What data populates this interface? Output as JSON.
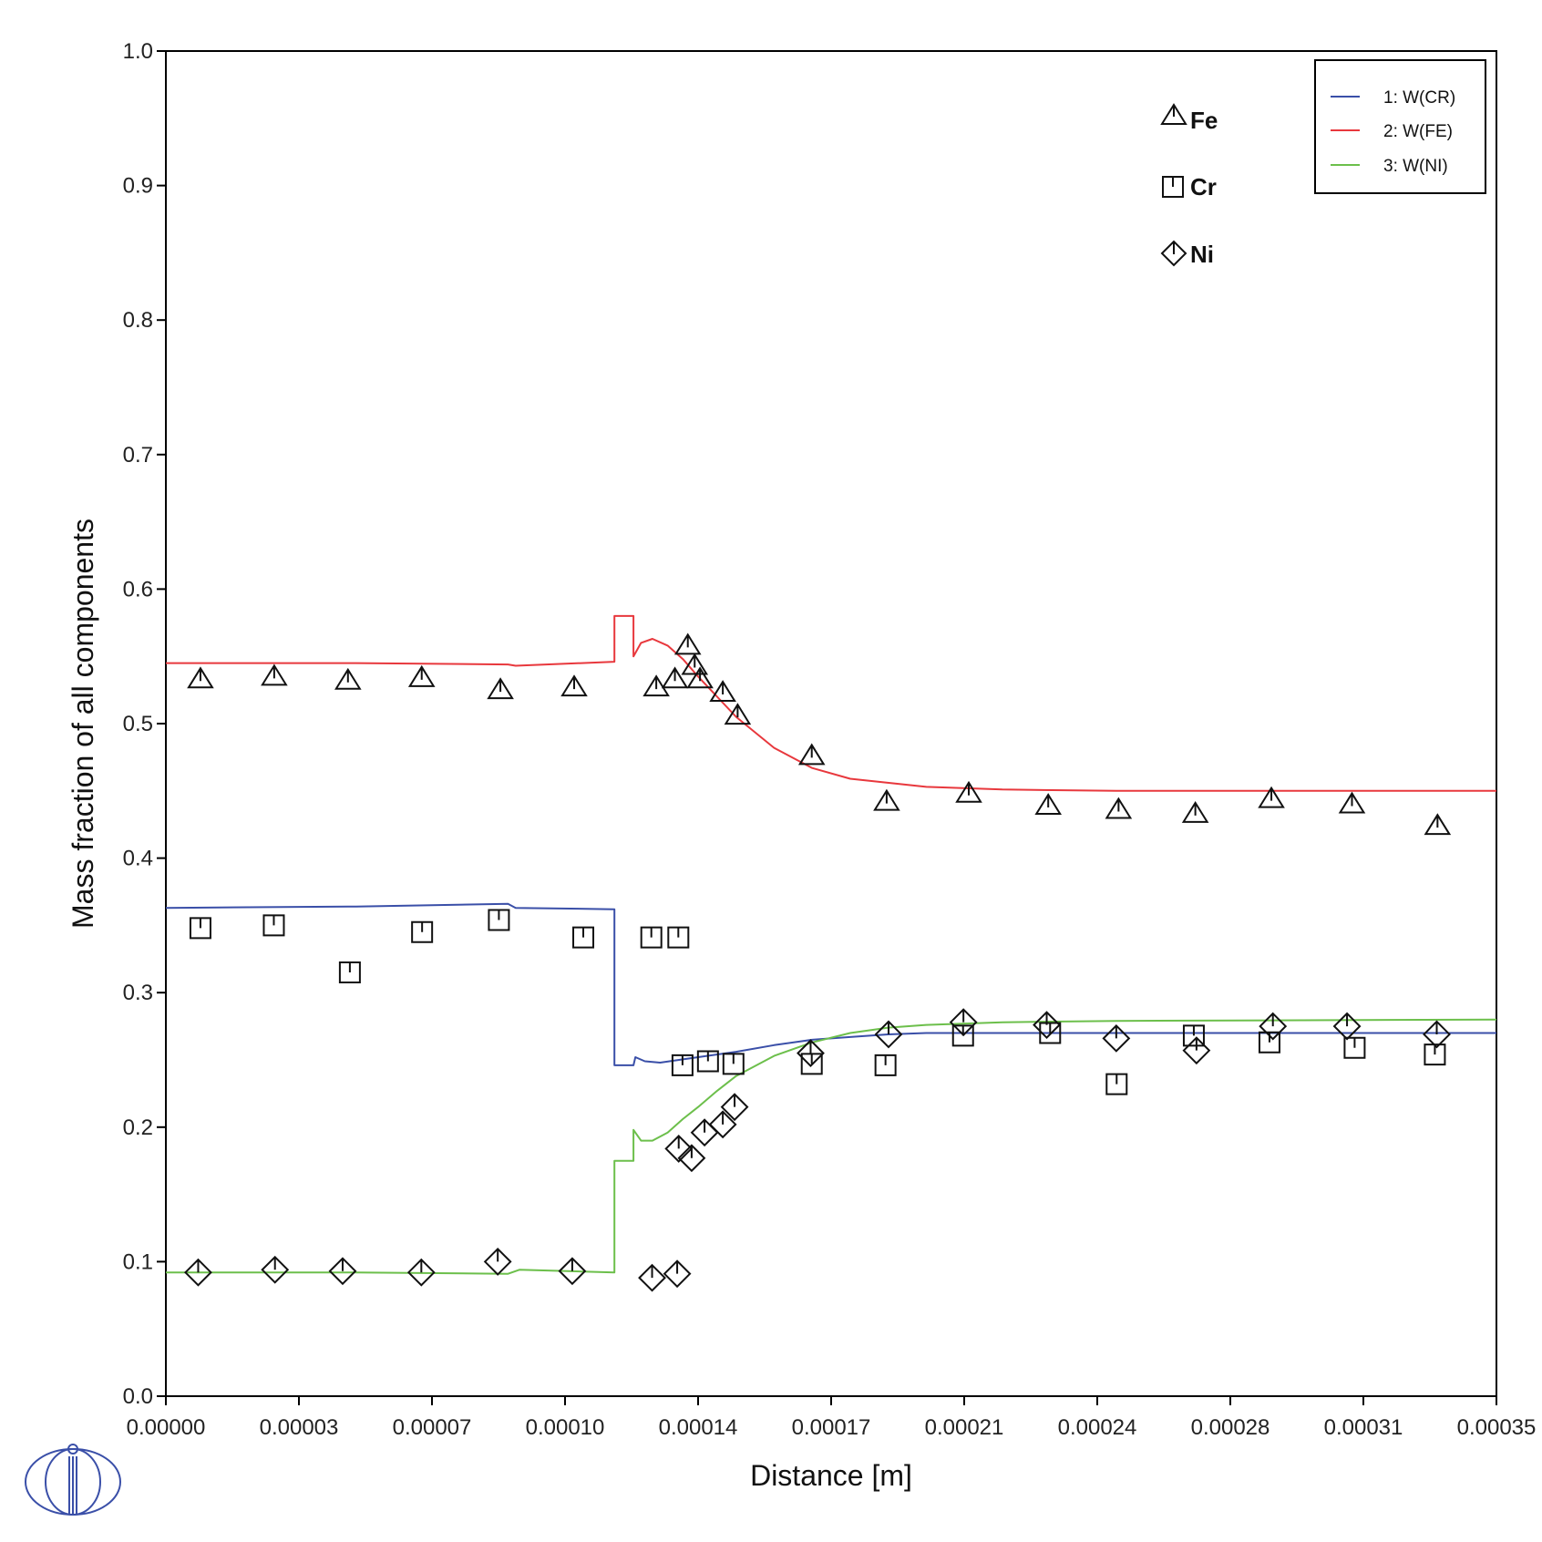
{
  "chart_data": {
    "type": "line",
    "xlabel": "Distance [m]",
    "ylabel": "Mass fraction of all components",
    "xlim": [
      0,
      0.00035
    ],
    "ylim": [
      0,
      1.0
    ],
    "grid": false,
    "x_tick_labels": [
      "0.00000",
      "0.00003",
      "0.00007",
      "0.00010",
      "0.00014",
      "0.00017",
      "0.00021",
      "0.00024",
      "0.00028",
      "0.00031",
      "0.00035"
    ],
    "y_tick_labels": [
      "0.0",
      "0.1",
      "0.2",
      "0.3",
      "0.4",
      "0.5",
      "0.6",
      "0.7",
      "0.8",
      "0.9",
      "1.0"
    ],
    "legend": {
      "placement": "top-right",
      "entries": [
        {
          "label": "1:  W(CR)",
          "color": "#3a4fa8"
        },
        {
          "label": "2:  W(FE)",
          "color": "#e8383d"
        },
        {
          "label": "3:  W(NI)",
          "color": "#6cbf4b"
        }
      ]
    },
    "series": [
      {
        "name": "W(CR)",
        "color": "#3a4fa8",
        "points": [
          [
            0,
            0.363
          ],
          [
            5e-05,
            0.364
          ],
          [
            9e-05,
            0.366
          ],
          [
            9.2e-05,
            0.363
          ],
          [
            0.000118,
            0.362
          ],
          [
            0.000118,
            0.246
          ],
          [
            0.000123,
            0.246
          ],
          [
            0.0001235,
            0.252
          ],
          [
            0.000126,
            0.249
          ],
          [
            0.00013,
            0.248
          ],
          [
            0.000135,
            0.25
          ],
          [
            0.00014,
            0.252
          ],
          [
            0.00015,
            0.256
          ],
          [
            0.00016,
            0.261
          ],
          [
            0.00017,
            0.265
          ],
          [
            0.00018,
            0.267
          ],
          [
            0.00019,
            0.269
          ],
          [
            0.0002,
            0.27
          ],
          [
            0.00025,
            0.27
          ],
          [
            0.00035,
            0.27
          ]
        ]
      },
      {
        "name": "W(FE)",
        "color": "#e8383d",
        "points": [
          [
            0,
            0.545
          ],
          [
            5e-05,
            0.545
          ],
          [
            9e-05,
            0.544
          ],
          [
            9.2e-05,
            0.543
          ],
          [
            0.000118,
            0.546
          ],
          [
            0.000118,
            0.58
          ],
          [
            0.000123,
            0.58
          ],
          [
            0.000123,
            0.55
          ],
          [
            0.000125,
            0.56
          ],
          [
            0.000128,
            0.563
          ],
          [
            0.000132,
            0.558
          ],
          [
            0.000136,
            0.548
          ],
          [
            0.00014,
            0.535
          ],
          [
            0.000145,
            0.52
          ],
          [
            0.00015,
            0.505
          ],
          [
            0.00016,
            0.482
          ],
          [
            0.00017,
            0.467
          ],
          [
            0.00018,
            0.459
          ],
          [
            0.0002,
            0.453
          ],
          [
            0.00022,
            0.451
          ],
          [
            0.00025,
            0.45
          ],
          [
            0.00035,
            0.45
          ]
        ]
      },
      {
        "name": "W(NI)",
        "color": "#6cbf4b",
        "points": [
          [
            0,
            0.092
          ],
          [
            5e-05,
            0.092
          ],
          [
            9e-05,
            0.091
          ],
          [
            9.3e-05,
            0.094
          ],
          [
            0.000118,
            0.092
          ],
          [
            0.000118,
            0.175
          ],
          [
            0.000123,
            0.175
          ],
          [
            0.000123,
            0.198
          ],
          [
            0.000125,
            0.19
          ],
          [
            0.000128,
            0.19
          ],
          [
            0.000132,
            0.196
          ],
          [
            0.000136,
            0.206
          ],
          [
            0.00014,
            0.215
          ],
          [
            0.000145,
            0.227
          ],
          [
            0.00015,
            0.238
          ],
          [
            0.00016,
            0.253
          ],
          [
            0.00017,
            0.263
          ],
          [
            0.00018,
            0.27
          ],
          [
            0.00019,
            0.274
          ],
          [
            0.0002,
            0.276
          ],
          [
            0.00022,
            0.278
          ],
          [
            0.00025,
            0.279
          ],
          [
            0.00035,
            0.28
          ]
        ]
      }
    ],
    "marker_legend": [
      {
        "label": "Fe",
        "shape": "triangle"
      },
      {
        "label": "Cr",
        "shape": "square"
      },
      {
        "label": "Ni",
        "shape": "diamond"
      }
    ],
    "markers": {
      "Fe": [
        [
          9.1e-06,
          0.533
        ],
        [
          2.85e-05,
          0.535
        ],
        [
          4.79e-05,
          0.532
        ],
        [
          6.73e-05,
          0.534
        ],
        [
          8.8e-05,
          0.525
        ],
        [
          0.0001074,
          0.527
        ],
        [
          0.000129,
          0.527
        ],
        [
          0.0001339,
          0.533
        ],
        [
          0.0001373,
          0.558
        ],
        [
          0.0001391,
          0.543
        ],
        [
          0.0001405,
          0.533
        ],
        [
          0.0001465,
          0.523
        ],
        [
          0.0001504,
          0.506
        ],
        [
          0.0001699,
          0.476
        ],
        [
          0.0001896,
          0.442
        ],
        [
          0.0002112,
          0.448
        ],
        [
          0.0002321,
          0.439
        ],
        [
          0.0002506,
          0.436
        ],
        [
          0.0002708,
          0.433
        ],
        [
          0.0002908,
          0.444
        ],
        [
          0.000312,
          0.44
        ],
        [
          0.0003345,
          0.424
        ]
      ],
      "Cr": [
        [
          9.1e-06,
          0.348
        ],
        [
          2.84e-05,
          0.35
        ],
        [
          4.84e-05,
          0.315
        ],
        [
          6.74e-05,
          0.345
        ],
        [
          8.76e-05,
          0.354
        ],
        [
          0.0001098,
          0.341
        ],
        [
          0.0001277,
          0.341
        ],
        [
          0.0001348,
          0.341
        ],
        [
          0.0001359,
          0.246
        ],
        [
          0.0001426,
          0.249
        ],
        [
          0.0001493,
          0.247
        ],
        [
          0.0001699,
          0.247
        ],
        [
          0.0001893,
          0.246
        ],
        [
          0.0002097,
          0.268
        ],
        [
          0.0002326,
          0.27
        ],
        [
          0.0002501,
          0.232
        ],
        [
          0.0002704,
          0.268
        ],
        [
          0.0002903,
          0.263
        ],
        [
          0.0003127,
          0.259
        ],
        [
          0.0003338,
          0.254
        ]
      ],
      "Ni": [
        [
          8.5e-06,
          0.092
        ],
        [
          2.87e-05,
          0.094
        ],
        [
          4.65e-05,
          0.093
        ],
        [
          6.72e-05,
          0.092
        ],
        [
          8.73e-05,
          0.1
        ],
        [
          0.0001069,
          0.093
        ],
        [
          0.0001279,
          0.088
        ],
        [
          0.0001345,
          0.091
        ],
        [
          0.0001349,
          0.184
        ],
        [
          0.0001383,
          0.177
        ],
        [
          0.0001417,
          0.196
        ],
        [
          0.0001465,
          0.202
        ],
        [
          0.0001496,
          0.215
        ],
        [
          0.0001696,
          0.255
        ],
        [
          0.0001901,
          0.269
        ],
        [
          0.0002098,
          0.278
        ],
        [
          0.0002317,
          0.276
        ],
        [
          0.00025,
          0.266
        ],
        [
          0.0002711,
          0.257
        ],
        [
          0.0002912,
          0.275
        ],
        [
          0.0003107,
          0.275
        ],
        [
          0.0003343,
          0.269
        ]
      ]
    }
  },
  "logo_icon": "thermo-calc-logo-icon"
}
